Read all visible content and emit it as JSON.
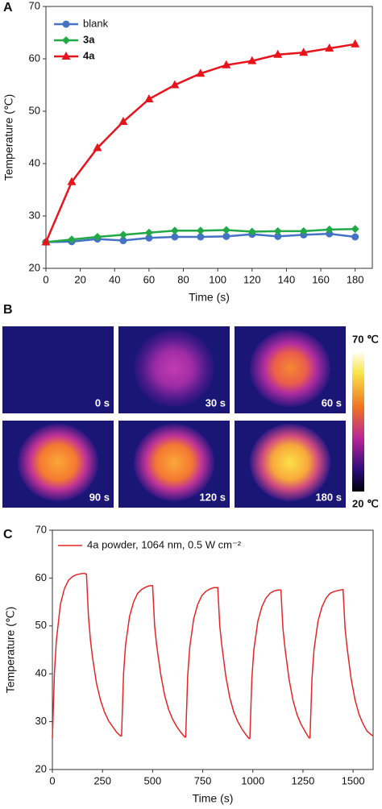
{
  "panel_labels": [
    "A",
    "B",
    "C"
  ],
  "chart_data": [
    {
      "type": "line",
      "x_label": "Time (s)",
      "y_label": "Temperature (℃)",
      "x": [
        0,
        15,
        30,
        45,
        60,
        75,
        90,
        105,
        120,
        135,
        150,
        165,
        180
      ],
      "series": [
        {
          "name": "blank",
          "color": "#4472c4",
          "marker": "circle",
          "values": [
            25,
            25.1,
            25.6,
            25.3,
            25.8,
            26,
            26,
            26.1,
            26.5,
            26.1,
            26.4,
            26.6,
            26
          ]
        },
        {
          "name": "3a",
          "color": "#22a846",
          "marker": "diamond",
          "bold": true,
          "values": [
            25,
            25.5,
            26,
            26.4,
            26.8,
            27.2,
            27.2,
            27.3,
            27,
            27.1,
            27.1,
            27.4,
            27.5
          ]
        },
        {
          "name": "4a",
          "color": "#e8141c",
          "marker": "triangle",
          "bold": true,
          "values": [
            25,
            36.5,
            43,
            48,
            52.3,
            55,
            57.2,
            58.8,
            59.6,
            60.8,
            61.2,
            62,
            62.8
          ]
        }
      ],
      "xlim": [
        0,
        190
      ],
      "ylim": [
        20,
        70
      ],
      "xticks": [
        0,
        20,
        40,
        60,
        80,
        100,
        120,
        140,
        160,
        180
      ],
      "yticks": [
        20,
        30,
        40,
        50,
        60,
        70
      ],
      "legend": "upper-left"
    },
    {
      "type": "line",
      "x_label": "Time (s)",
      "y_label": "Temperature (℃)",
      "x": [
        0,
        10,
        20,
        40,
        60,
        80,
        100,
        120,
        140,
        160,
        170,
        180,
        190,
        200,
        220,
        240,
        260,
        280,
        300,
        320,
        340,
        345,
        355,
        365,
        385,
        405,
        425,
        445,
        465,
        485,
        500,
        510,
        520,
        540,
        560,
        580,
        600,
        620,
        640,
        660,
        665,
        675,
        685,
        705,
        725,
        745,
        765,
        785,
        805,
        825,
        835,
        845,
        865,
        885,
        905,
        925,
        945,
        965,
        980,
        985,
        995,
        1005,
        1025,
        1045,
        1065,
        1085,
        1105,
        1125,
        1140,
        1150,
        1160,
        1180,
        1200,
        1220,
        1240,
        1260,
        1280,
        1285,
        1295,
        1305,
        1325,
        1345,
        1365,
        1385,
        1405,
        1425,
        1450,
        1460,
        1470,
        1490,
        1510,
        1530,
        1550,
        1570,
        1590,
        1600
      ],
      "series": [
        {
          "name": "4a powder, 1064 nm, 0.5 W cm⁻²",
          "color": "#e32626",
          "values": [
            26.5,
            40,
            47,
            54.5,
            57.8,
            59.5,
            60.3,
            60.7,
            60.9,
            61,
            60.8,
            52,
            47,
            43.5,
            38,
            34.5,
            32,
            30.2,
            29,
            27.8,
            27,
            27,
            40,
            46,
            52,
            55,
            56.8,
            57.6,
            58.1,
            58.4,
            58.4,
            50,
            46,
            40,
            35.5,
            32.5,
            30.5,
            29,
            27.8,
            26.8,
            26.8,
            39.5,
            45.5,
            51.5,
            54.5,
            56.3,
            57.2,
            57.7,
            58,
            58,
            50,
            46,
            39.5,
            35,
            32,
            30,
            28.5,
            27.3,
            26.5,
            26.5,
            39,
            45,
            51,
            54,
            55.8,
            56.8,
            57.3,
            57.5,
            57.5,
            49.5,
            45.5,
            39,
            34.5,
            31.5,
            29.5,
            28,
            26.6,
            26.6,
            39,
            45,
            51,
            54,
            55.8,
            56.8,
            57.2,
            57.4,
            57.6,
            49.5,
            45.5,
            39,
            34.5,
            31.5,
            29.5,
            28,
            27.3,
            27
          ]
        }
      ],
      "xlim": [
        0,
        1600
      ],
      "ylim": [
        20,
        70
      ],
      "xticks": [
        0,
        250,
        500,
        750,
        1000,
        1250,
        1500
      ],
      "yticks": [
        20,
        30,
        40,
        50,
        60,
        70
      ],
      "legend": "upper-left"
    }
  ],
  "panel_b": {
    "labels": [
      "0 s",
      "30 s",
      "60 s",
      "90 s",
      "120 s",
      "180 s"
    ],
    "colorbar": {
      "max_label": "70 ℃",
      "min_label": "20 ℃"
    }
  }
}
